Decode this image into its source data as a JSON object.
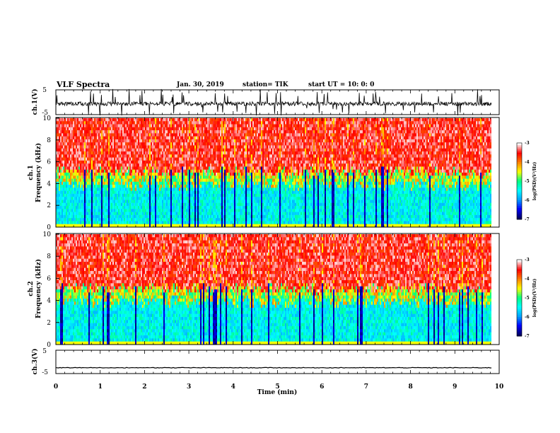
{
  "header": {
    "title": "VLF Spectra",
    "date": "Jan. 30, 2019",
    "station": "station= TIK",
    "start": "start UT = 10: 0: 0"
  },
  "chart_data": [
    {
      "type": "line",
      "name": "ch1-waveform",
      "ylabel": "ch.1(V)",
      "ylim": [
        -5,
        5
      ],
      "yticks": [
        "5",
        "-5"
      ],
      "xlim": [
        0,
        10
      ],
      "data_xmax": 9.83
    },
    {
      "type": "heatmap",
      "name": "ch1-spectrogram",
      "ylabel": "ch.1\nFrequency (kHz)",
      "ylim": [
        0,
        10
      ],
      "yticks": [
        "0",
        "2",
        "4",
        "6",
        "8",
        "10"
      ],
      "xlim": [
        0,
        10
      ],
      "data_xmax": 9.83,
      "colorbar": {
        "label": "log(PSD)(V²/Hz)",
        "range": [
          -7,
          -3
        ],
        "ticks": [
          "-3",
          "-4",
          "-5",
          "-6",
          "-7"
        ]
      }
    },
    {
      "type": "heatmap",
      "name": "ch2-spectrogram",
      "ylabel": "ch.2\nFrequency (kHz)",
      "ylim": [
        0,
        10
      ],
      "yticks": [
        "0",
        "2",
        "4",
        "6",
        "8",
        "10"
      ],
      "xlim": [
        0,
        10
      ],
      "data_xmax": 9.83,
      "colorbar": {
        "label": "log(PSD)(V²/Hz)",
        "range": [
          -7,
          -3
        ],
        "ticks": [
          "-3",
          "-4",
          "-5",
          "-6",
          "-7"
        ]
      }
    },
    {
      "type": "line",
      "name": "ch3-waveform",
      "ylabel": "ch.3(V)",
      "ylim": [
        -5,
        5
      ],
      "yticks": [
        "5",
        "-5"
      ],
      "xlim": [
        0,
        10
      ],
      "data_xmax": 9.83,
      "level": -2.5
    }
  ],
  "xaxis": {
    "label": "Time (min)",
    "ticks": [
      "0",
      "1",
      "2",
      "3",
      "4",
      "5",
      "6",
      "7",
      "8",
      "9",
      "10"
    ]
  },
  "colors": {
    "colormap": [
      "#000060",
      "#0000ff",
      "#00a0ff",
      "#00ffff",
      "#00ff80",
      "#ffff00",
      "#ff8000",
      "#ff0000",
      "#ffffff"
    ]
  }
}
